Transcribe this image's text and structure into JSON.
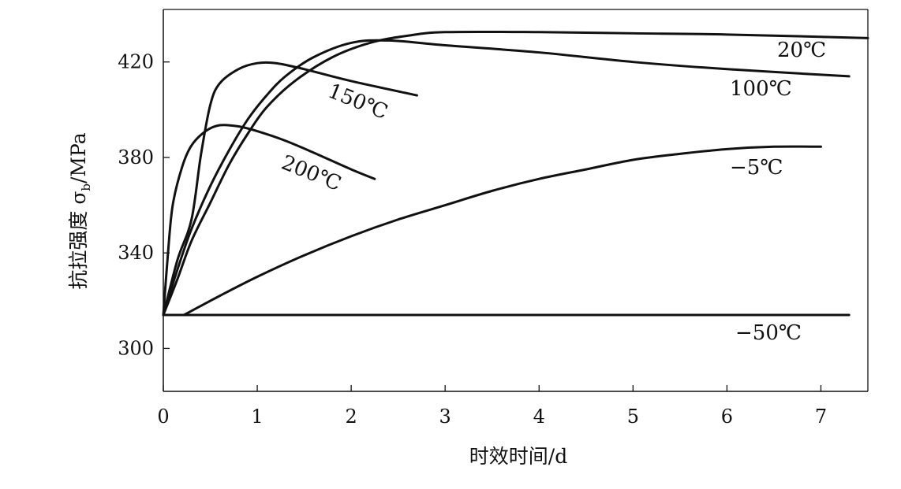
{
  "chart_data": {
    "type": "line",
    "xlabel": "时效时间/d",
    "ylabel": "抗拉强度 σ",
    "ylabel_subscript": "b",
    "ylabel_unit": "/MPa",
    "xlim": [
      0,
      7.5
    ],
    "ylim": [
      282,
      442
    ],
    "xticks": [
      "0",
      "1",
      "2",
      "3",
      "4",
      "5",
      "6",
      "7"
    ],
    "yticks": [
      "300",
      "340",
      "380",
      "420"
    ],
    "grid": false,
    "line_color": "#111111",
    "series": [
      {
        "name": "20℃",
        "points": [
          [
            0,
            314
          ],
          [
            0.15,
            329
          ],
          [
            0.3,
            345
          ],
          [
            0.5,
            361
          ],
          [
            0.7,
            377
          ],
          [
            0.9,
            390
          ],
          [
            1.1,
            401
          ],
          [
            1.4,
            412
          ],
          [
            1.8,
            422
          ],
          [
            2.2,
            428
          ],
          [
            2.6,
            431
          ],
          [
            3.0,
            432.5
          ],
          [
            4.0,
            432.5
          ],
          [
            5.0,
            432
          ],
          [
            6.0,
            431.5
          ],
          [
            7.5,
            430
          ]
        ]
      },
      {
        "name": "100℃",
        "points": [
          [
            0,
            314
          ],
          [
            0.15,
            333
          ],
          [
            0.3,
            350
          ],
          [
            0.5,
            368
          ],
          [
            0.7,
            383
          ],
          [
            0.9,
            396
          ],
          [
            1.1,
            406
          ],
          [
            1.3,
            414
          ],
          [
            1.6,
            422
          ],
          [
            2.0,
            428
          ],
          [
            2.4,
            429
          ],
          [
            3.0,
            427
          ],
          [
            4.0,
            424
          ],
          [
            5.0,
            420
          ],
          [
            6.0,
            417
          ],
          [
            7.3,
            414
          ]
        ]
      },
      {
        "name": "150℃",
        "points": [
          [
            0,
            314
          ],
          [
            0.15,
            337
          ],
          [
            0.3,
            354
          ],
          [
            0.4,
            381
          ],
          [
            0.5,
            402
          ],
          [
            0.6,
            411
          ],
          [
            0.8,
            417
          ],
          [
            1.0,
            419.5
          ],
          [
            1.2,
            419.5
          ],
          [
            1.5,
            417
          ],
          [
            2.0,
            412
          ],
          [
            2.7,
            406
          ]
        ]
      },
      {
        "name": "200℃",
        "points": [
          [
            0,
            314
          ],
          [
            0.05,
            340
          ],
          [
            0.1,
            360
          ],
          [
            0.2,
            376
          ],
          [
            0.3,
            385
          ],
          [
            0.45,
            391
          ],
          [
            0.6,
            393.5
          ],
          [
            0.8,
            393
          ],
          [
            1.0,
            391
          ],
          [
            1.3,
            387
          ],
          [
            1.6,
            382
          ],
          [
            2.0,
            375
          ],
          [
            2.25,
            371
          ]
        ]
      },
      {
        "name": "−5℃",
        "points": [
          [
            0.22,
            314
          ],
          [
            0.6,
            322
          ],
          [
            1.0,
            330
          ],
          [
            1.5,
            339
          ],
          [
            2.0,
            347
          ],
          [
            2.5,
            354
          ],
          [
            3.0,
            360
          ],
          [
            3.5,
            366
          ],
          [
            4.0,
            371
          ],
          [
            4.5,
            375
          ],
          [
            5.0,
            379
          ],
          [
            5.5,
            381.5
          ],
          [
            6.0,
            383.5
          ],
          [
            6.5,
            384.5
          ],
          [
            7.0,
            384.5
          ]
        ]
      },
      {
        "name": "−50℃",
        "points": [
          [
            0,
            314
          ],
          [
            7.3,
            314
          ]
        ]
      }
    ]
  }
}
